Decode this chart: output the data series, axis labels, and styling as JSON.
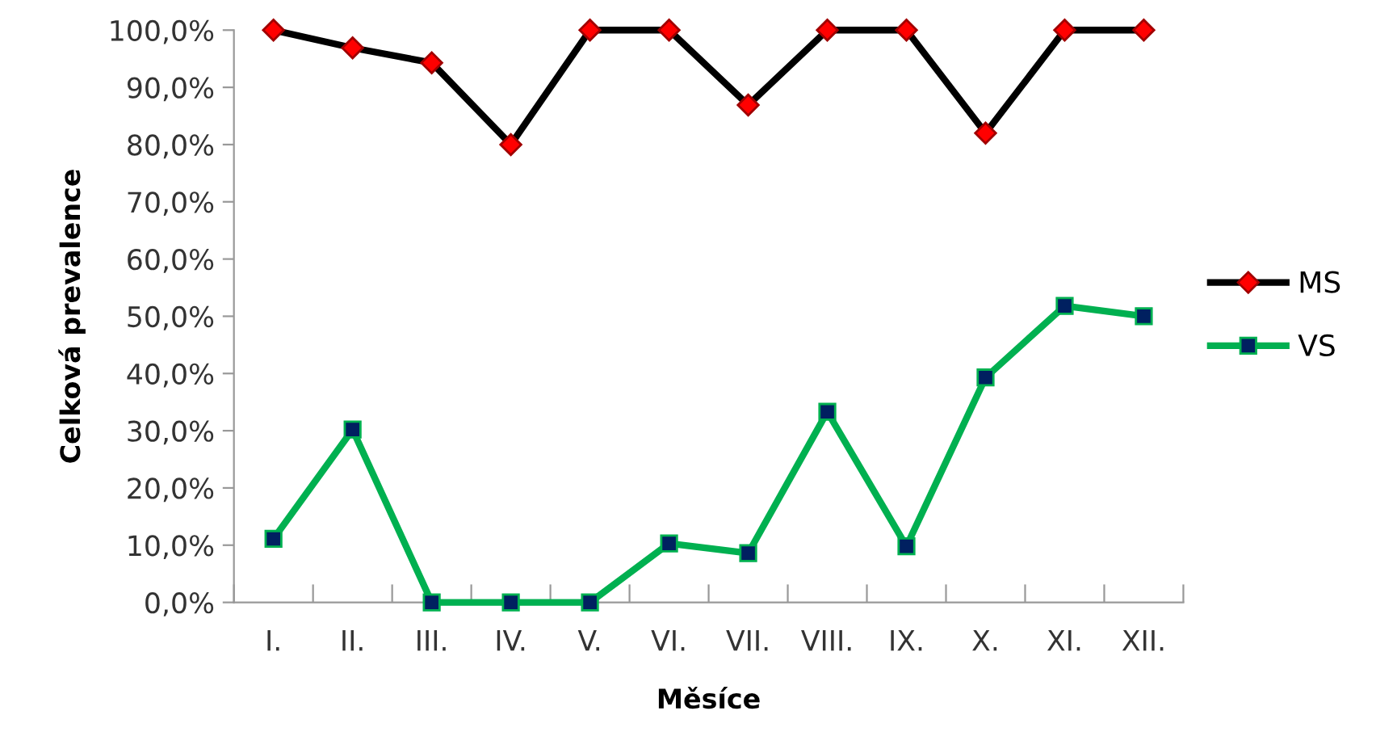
{
  "chart_data": {
    "type": "line",
    "xlabel": "Měsíce",
    "ylabel": "Celková prevalence",
    "categories": [
      "I.",
      "II.",
      "III.",
      "IV.",
      "V.",
      "VI.",
      "VII.",
      "VIII.",
      "IX.",
      "X.",
      "XI.",
      "XII."
    ],
    "series": [
      {
        "name": "MS",
        "color": "#000000",
        "marker": "diamond",
        "values": [
          100,
          96.9,
          94.3,
          80,
          100,
          100,
          86.9,
          100,
          100,
          82,
          100,
          100
        ]
      },
      {
        "name": "VS",
        "color": "#00b050",
        "marker": "square",
        "values": [
          11.1,
          30.2,
          0,
          0,
          0,
          10.3,
          8.6,
          33.3,
          9.8,
          39.3,
          51.8,
          50
        ]
      }
    ],
    "ylim": [
      0,
      100
    ],
    "yticks": [
      {
        "value": 0,
        "label": "0,0%"
      },
      {
        "value": 10,
        "label": "10,0%"
      },
      {
        "value": 20,
        "label": "20,0%"
      },
      {
        "value": 30,
        "label": "30,0%"
      },
      {
        "value": 40,
        "label": "40,0%"
      },
      {
        "value": 50,
        "label": "50,0%"
      },
      {
        "value": 60,
        "label": "60,0%"
      },
      {
        "value": 70,
        "label": "70,0%"
      },
      {
        "value": 80,
        "label": "80,0%"
      },
      {
        "value": 90,
        "label": "90,0%"
      },
      {
        "value": 100,
        "label": "100,0%"
      }
    ],
    "grid": false,
    "legend": "right",
    "line_style": "solid"
  }
}
